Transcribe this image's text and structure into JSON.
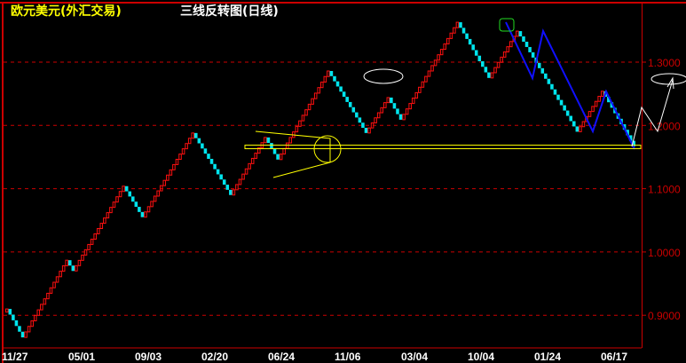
{
  "header": {
    "instrument": "欧元美元(外汇交易)",
    "chart_name": "三线反转图(日线)"
  },
  "colors": {
    "background": "#000000",
    "frame": "#cc0000",
    "up": "#ff1010",
    "down": "#00e5ee",
    "axis_text": "#cc0000",
    "date_text": "#ffffff",
    "trendline": "#1010ff",
    "annotation_yellow": "#ffff00",
    "annotation_white": "#ffffff",
    "annotation_green": "#22dd22"
  },
  "chart_data": {
    "type": "three-line-break",
    "title": "三线反转图(日线)",
    "ylim": [
      0.855,
      1.38
    ],
    "grid": true,
    "y_ticks": [
      "0.9000",
      "1.0000",
      "1.1000",
      "1.2000",
      "1.3000"
    ],
    "y_tick_values": [
      0.9,
      1.0,
      1.1,
      1.2,
      1.3
    ],
    "x_ticks": [
      "11/27",
      "05/01",
      "09/03",
      "02/20",
      "06/24",
      "11/06",
      "03/04",
      "10/04",
      "01/24",
      "06/17"
    ],
    "turning_closes": [
      0.905,
      0.91,
      0.865,
      0.987,
      0.97,
      1.104,
      1.055,
      1.188,
      1.09,
      1.181,
      1.146,
      1.286,
      1.188,
      1.244,
      1.209,
      1.363,
      1.275,
      1.349,
      1.19,
      1.254,
      1.167
    ],
    "support_level": 1.166
  }
}
